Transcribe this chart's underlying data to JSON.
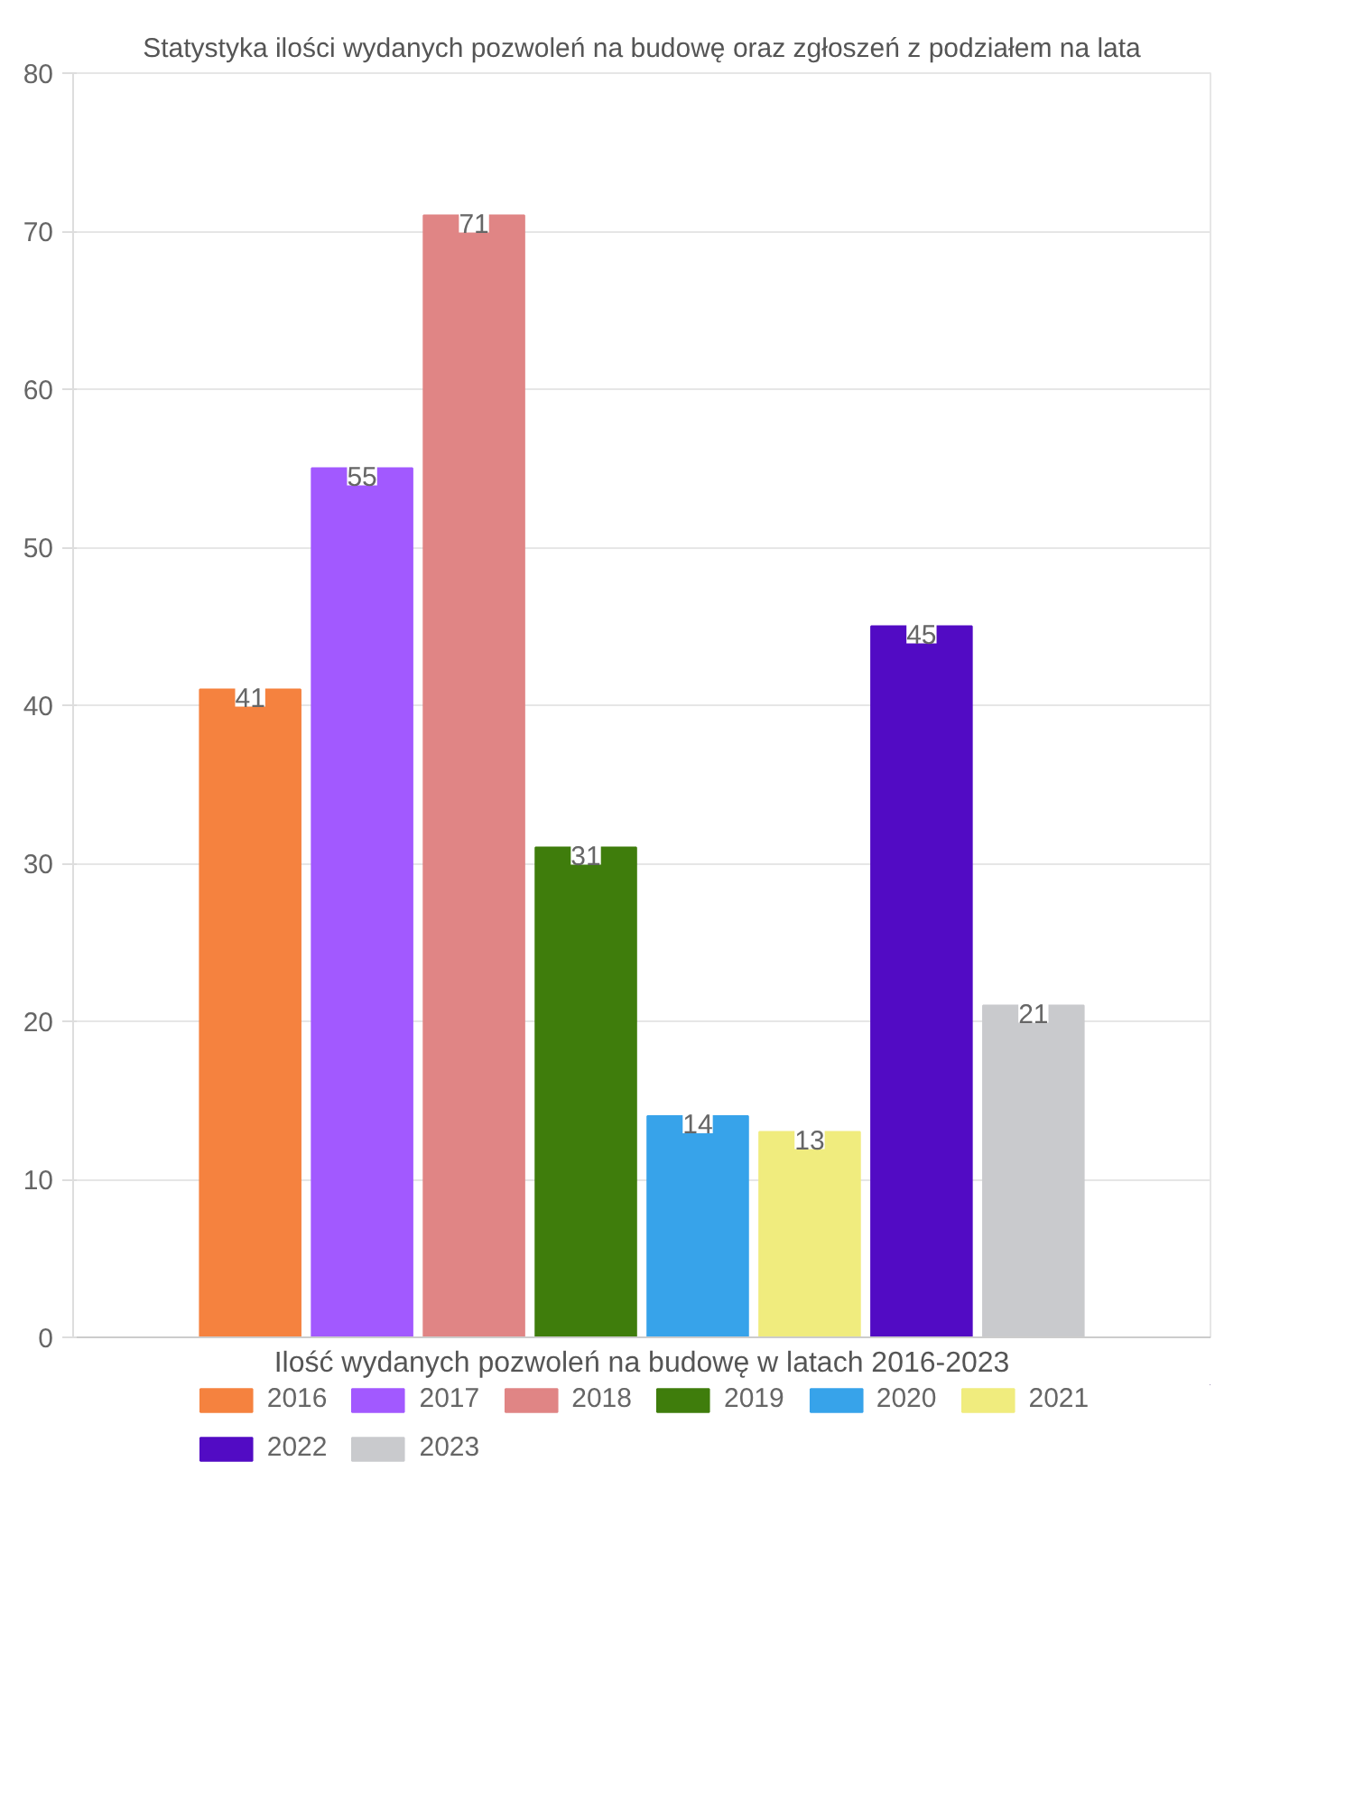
{
  "chart_data": {
    "type": "bar",
    "title": "Statystyka ilości wydanych pozwoleń na budowę oraz zgłoszeń z podziałem na lata",
    "xlabel": "Ilość wydanych pozwoleń na budowę w latach 2016-2023",
    "categories": [
      null
    ],
    "series": [
      {
        "name": "2016",
        "color": "#f5823f",
        "values": [
          41
        ]
      },
      {
        "name": "2017",
        "color": "#a259ff",
        "values": [
          55
        ]
      },
      {
        "name": "2018",
        "color": "#e08585",
        "values": [
          71
        ]
      },
      {
        "name": "2019",
        "color": "#3f7d0c",
        "values": [
          31
        ]
      },
      {
        "name": "2020",
        "color": "#37a3ea",
        "values": [
          14
        ]
      },
      {
        "name": "2021",
        "color": "#f0ec7e",
        "values": [
          13
        ]
      },
      {
        "name": "2022",
        "color": "#520bc4",
        "values": [
          45
        ]
      },
      {
        "name": "2023",
        "color": "#c9cacd",
        "values": [
          21
        ]
      }
    ],
    "ylim": [
      0,
      80
    ],
    "yticks": [
      0,
      10,
      20,
      30,
      40,
      50,
      60,
      70,
      80
    ],
    "grid": "y",
    "legend": "bottom",
    "data_labels": true
  }
}
